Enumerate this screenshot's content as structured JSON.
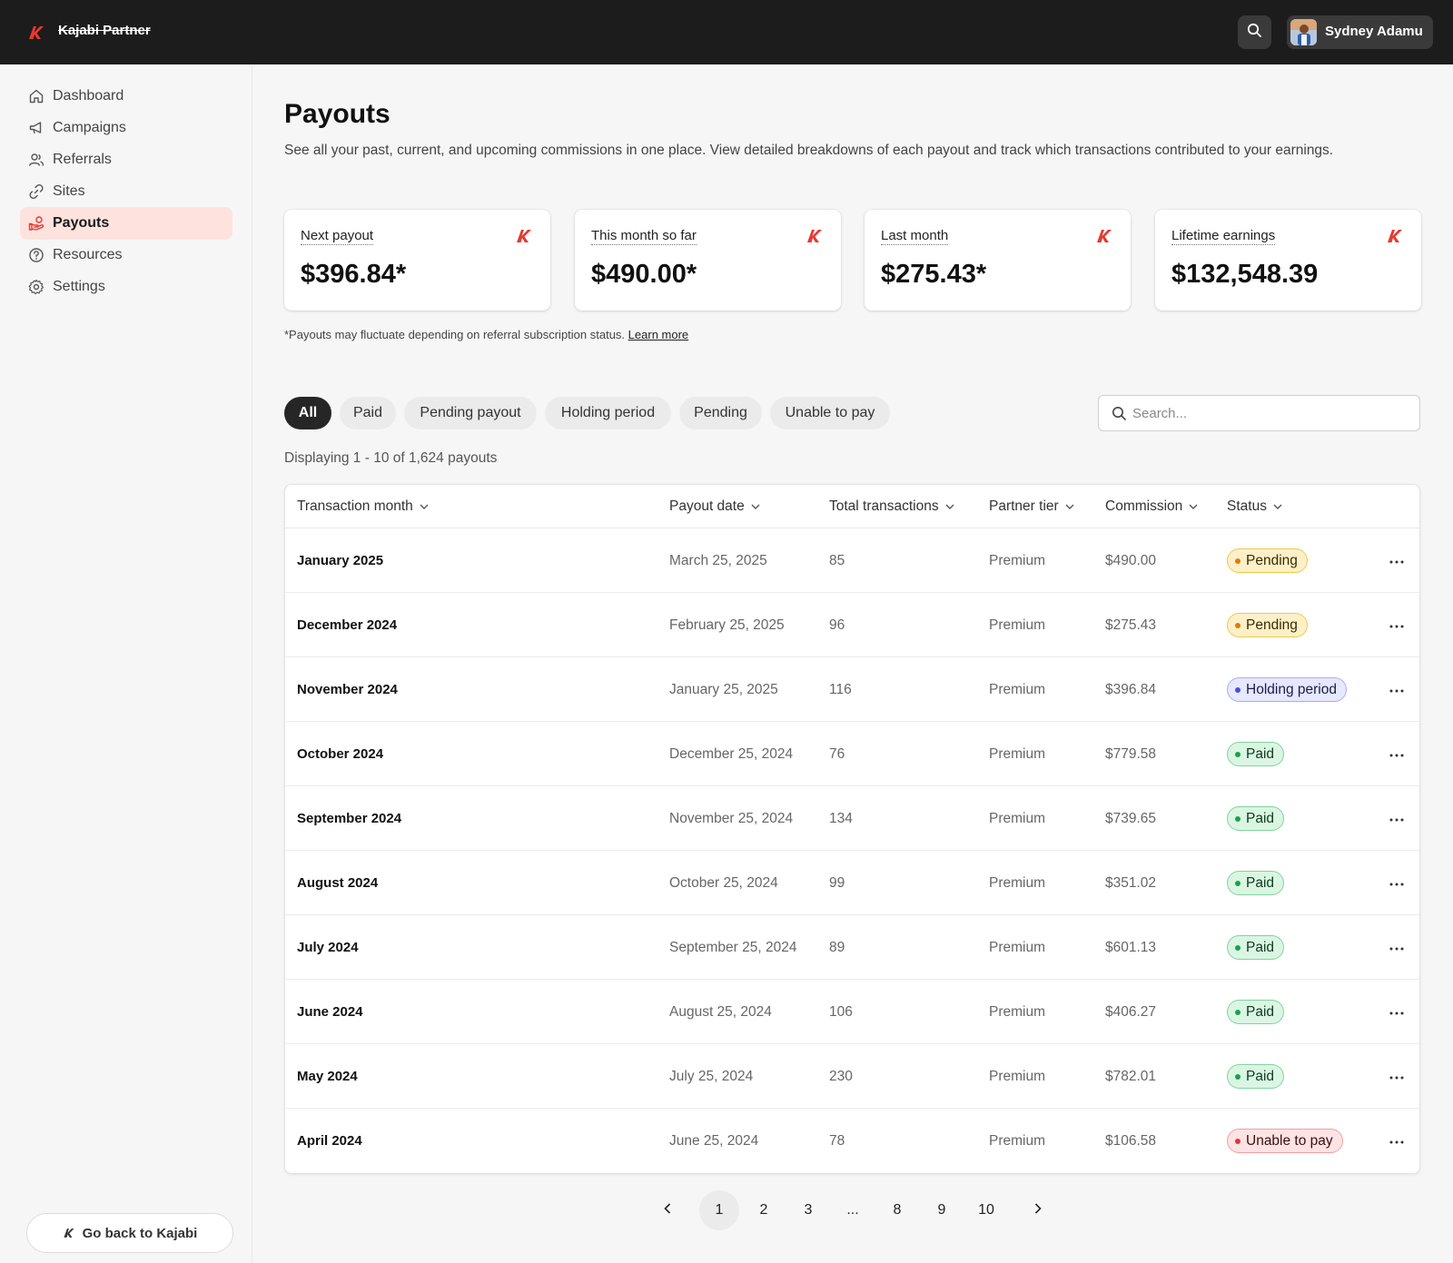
{
  "app": {
    "brand_name": "Kajabi Partner"
  },
  "header": {
    "user_name": "Sydney Adamu"
  },
  "sidebar": {
    "items": [
      {
        "label": "Dashboard",
        "icon": "home-icon"
      },
      {
        "label": "Campaigns",
        "icon": "megaphone-icon"
      },
      {
        "label": "Referrals",
        "icon": "users-icon"
      },
      {
        "label": "Sites",
        "icon": "link-icon"
      },
      {
        "label": "Payouts",
        "icon": "hand-coins-icon",
        "active": true
      },
      {
        "label": "Resources",
        "icon": "help-circle-icon"
      },
      {
        "label": "Settings",
        "icon": "gear-icon"
      }
    ],
    "back_label": "Go back to Kajabi"
  },
  "page": {
    "title": "Payouts",
    "subtitle": "See all your past, current, and upcoming commissions in one place. View detailed breakdowns of each payout and track which transactions contributed to your earnings."
  },
  "cards": [
    {
      "label": "Next payout",
      "value": "$396.84*"
    },
    {
      "label": "This month so far",
      "value": "$490.00*"
    },
    {
      "label": "Last month",
      "value": "$275.43*"
    },
    {
      "label": "Lifetime earnings",
      "value": "$132,548.39"
    }
  ],
  "footnote": {
    "text": "*Payouts may fluctuate depending on referral subscription status.",
    "link": "Learn more"
  },
  "filters": [
    "All",
    "Paid",
    "Pending payout",
    "Holding period",
    "Pending",
    "Unable to pay"
  ],
  "search": {
    "placeholder": "Search..."
  },
  "displaying": "Displaying 1 - 10 of 1,624 payouts",
  "table": {
    "columns": [
      "Transaction month",
      "Payout date",
      "Total transactions",
      "Partner tier",
      "Commission",
      "Status"
    ],
    "rows": [
      {
        "month": "January 2025",
        "payout_date": "March 25, 2025",
        "transactions": "85",
        "tier": "Premium",
        "commission": "$490.00",
        "status": "Pending",
        "status_kind": "pending"
      },
      {
        "month": "December 2024",
        "payout_date": "February 25,  2025",
        "transactions": "96",
        "tier": "Premium",
        "commission": "$275.43",
        "status": "Pending",
        "status_kind": "pending"
      },
      {
        "month": "November 2024",
        "payout_date": "January 25, 2025",
        "transactions": "116",
        "tier": "Premium",
        "commission": "$396.84",
        "status": "Holding period",
        "status_kind": "holding"
      },
      {
        "month": "October 2024",
        "payout_date": "December 25,  2024",
        "transactions": "76",
        "tier": "Premium",
        "commission": "$779.58",
        "status": "Paid",
        "status_kind": "paid"
      },
      {
        "month": "September 2024",
        "payout_date": "November 25, 2024",
        "transactions": "134",
        "tier": "Premium",
        "commission": "$739.65",
        "status": "Paid",
        "status_kind": "paid"
      },
      {
        "month": "August 2024",
        "payout_date": "October 25, 2024",
        "transactions": "99",
        "tier": "Premium",
        "commission": "$351.02",
        "status": "Paid",
        "status_kind": "paid"
      },
      {
        "month": "July 2024",
        "payout_date": "September 25, 2024",
        "transactions": "89",
        "tier": "Premium",
        "commission": "$601.13",
        "status": "Paid",
        "status_kind": "paid"
      },
      {
        "month": "June 2024",
        "payout_date": "August 25, 2024",
        "transactions": "106",
        "tier": "Premium",
        "commission": "$406.27",
        "status": "Paid",
        "status_kind": "paid"
      },
      {
        "month": "May 2024",
        "payout_date": "July 25, 2024",
        "transactions": "230",
        "tier": "Premium",
        "commission": "$782.01",
        "status": "Paid",
        "status_kind": "paid"
      },
      {
        "month": "April 2024",
        "payout_date": "June 25, 2024",
        "transactions": "78",
        "tier": "Premium",
        "commission": "$106.58",
        "status": "Unable to pay",
        "status_kind": "unable"
      }
    ]
  },
  "pagination": {
    "pages": [
      "1",
      "2",
      "3",
      "...",
      "8",
      "9",
      "10"
    ],
    "current": "1"
  },
  "colors": {
    "brand_red": "#e8382f",
    "topbar": "#1c1c1c",
    "active_nav": "#fde2de"
  }
}
